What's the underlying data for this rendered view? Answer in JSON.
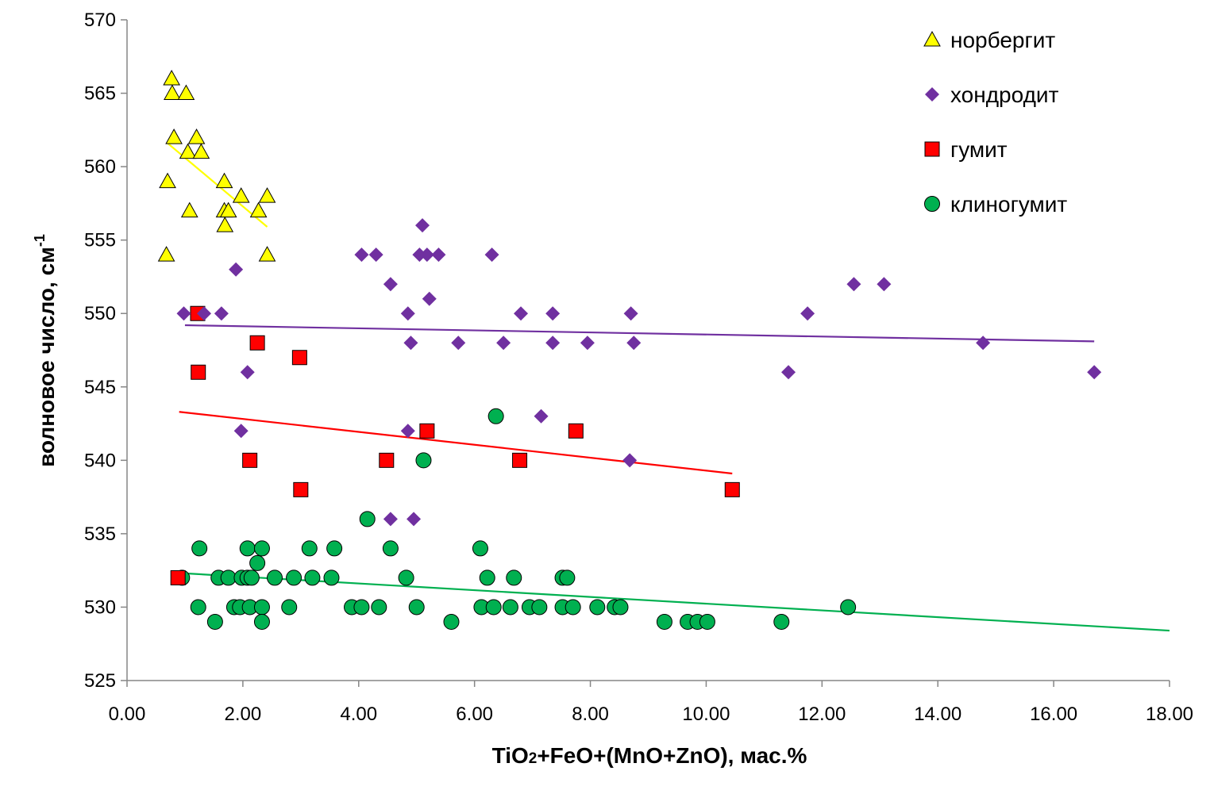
{
  "chart_data": {
    "type": "scatter",
    "xlabel": {
      "pre": "TiO",
      "sub": "2",
      "post": "+FeO+(MnO+ZnO), мас.%"
    },
    "ylabel": {
      "main": "волновое число, см",
      "sup": "-1"
    },
    "xlim": [
      0,
      18
    ],
    "ylim": [
      525,
      570
    ],
    "xticks": [
      "0.00",
      "2.00",
      "4.00",
      "6.00",
      "8.00",
      "10.00",
      "12.00",
      "14.00",
      "16.00",
      "18.00"
    ],
    "yticks": [
      "525",
      "530",
      "535",
      "540",
      "545",
      "550",
      "555",
      "560",
      "565",
      "570"
    ],
    "grid": false,
    "legend_position": "top-right",
    "series": [
      {
        "name": "норбергит",
        "marker": "triangle",
        "color": "#ffff00",
        "points": [
          [
            0.77,
            566
          ],
          [
            0.78,
            565
          ],
          [
            1.02,
            565
          ],
          [
            0.81,
            562
          ],
          [
            1.2,
            562
          ],
          [
            1.05,
            561
          ],
          [
            1.28,
            561
          ],
          [
            0.7,
            559
          ],
          [
            1.68,
            559
          ],
          [
            1.97,
            558
          ],
          [
            2.42,
            558
          ],
          [
            1.08,
            557
          ],
          [
            1.68,
            557
          ],
          [
            1.75,
            557
          ],
          [
            2.27,
            557
          ],
          [
            1.69,
            556
          ],
          [
            0.68,
            554
          ],
          [
            2.42,
            554
          ]
        ],
        "trend": {
          "x1": 0.7,
          "y1": 561.6,
          "x2": 2.42,
          "y2": 555.9,
          "color": "#ffff00"
        }
      },
      {
        "name": "хондродит",
        "marker": "diamond",
        "color": "#7030a0",
        "points": [
          [
            5.1,
            556
          ],
          [
            4.05,
            554
          ],
          [
            4.3,
            554
          ],
          [
            5.05,
            554
          ],
          [
            5.18,
            554
          ],
          [
            5.38,
            554
          ],
          [
            6.3,
            554
          ],
          [
            1.88,
            553
          ],
          [
            4.55,
            552
          ],
          [
            12.55,
            552
          ],
          [
            13.07,
            552
          ],
          [
            5.22,
            551
          ],
          [
            0.98,
            550
          ],
          [
            1.33,
            550
          ],
          [
            1.63,
            550
          ],
          [
            4.85,
            550
          ],
          [
            6.8,
            550
          ],
          [
            7.35,
            550
          ],
          [
            8.7,
            550
          ],
          [
            11.75,
            550
          ],
          [
            4.9,
            548
          ],
          [
            5.72,
            548
          ],
          [
            6.5,
            548
          ],
          [
            7.35,
            548
          ],
          [
            7.95,
            548
          ],
          [
            8.75,
            548
          ],
          [
            14.78,
            548
          ],
          [
            2.08,
            546
          ],
          [
            11.42,
            546
          ],
          [
            16.7,
            546
          ],
          [
            7.15,
            543
          ],
          [
            1.97,
            542
          ],
          [
            4.85,
            542
          ],
          [
            8.68,
            540
          ],
          [
            4.55,
            536
          ],
          [
            4.95,
            536
          ]
        ],
        "trend": {
          "x1": 1.0,
          "y1": 549.2,
          "x2": 16.7,
          "y2": 548.1,
          "color": "#7030a0"
        }
      },
      {
        "name": "гумит",
        "marker": "square",
        "color": "#ff0000",
        "points": [
          [
            1.22,
            550
          ],
          [
            2.25,
            548
          ],
          [
            2.98,
            547
          ],
          [
            1.23,
            546
          ],
          [
            5.18,
            542
          ],
          [
            7.75,
            542
          ],
          [
            2.12,
            540
          ],
          [
            4.48,
            540
          ],
          [
            6.78,
            540
          ],
          [
            3.0,
            538
          ],
          [
            10.45,
            538
          ],
          [
            0.88,
            532
          ]
        ],
        "trend": {
          "x1": 0.9,
          "y1": 543.3,
          "x2": 10.45,
          "y2": 539.1,
          "color": "#ff0000"
        }
      },
      {
        "name": "клиногумит",
        "marker": "circle",
        "color": "#00b050",
        "points": [
          [
            6.37,
            543
          ],
          [
            5.12,
            540
          ],
          [
            4.15,
            536
          ],
          [
            1.25,
            534
          ],
          [
            2.08,
            534
          ],
          [
            2.33,
            534
          ],
          [
            3.15,
            534
          ],
          [
            3.58,
            534
          ],
          [
            4.55,
            534
          ],
          [
            6.1,
            534
          ],
          [
            2.25,
            533
          ],
          [
            0.95,
            532
          ],
          [
            1.58,
            532
          ],
          [
            1.75,
            532
          ],
          [
            1.98,
            532
          ],
          [
            2.08,
            532
          ],
          [
            2.15,
            532
          ],
          [
            2.55,
            532
          ],
          [
            2.88,
            532
          ],
          [
            3.2,
            532
          ],
          [
            3.53,
            532
          ],
          [
            4.82,
            532
          ],
          [
            6.22,
            532
          ],
          [
            6.68,
            532
          ],
          [
            7.52,
            532
          ],
          [
            7.6,
            532
          ],
          [
            1.23,
            530
          ],
          [
            1.85,
            530
          ],
          [
            1.95,
            530
          ],
          [
            2.12,
            530
          ],
          [
            2.33,
            530
          ],
          [
            2.8,
            530
          ],
          [
            3.88,
            530
          ],
          [
            4.05,
            530
          ],
          [
            4.35,
            530
          ],
          [
            5.0,
            530
          ],
          [
            6.12,
            530
          ],
          [
            6.33,
            530
          ],
          [
            6.62,
            530
          ],
          [
            6.95,
            530
          ],
          [
            7.12,
            530
          ],
          [
            7.52,
            530
          ],
          [
            7.7,
            530
          ],
          [
            8.12,
            530
          ],
          [
            8.42,
            530
          ],
          [
            8.52,
            530
          ],
          [
            12.45,
            530
          ],
          [
            1.52,
            529
          ],
          [
            2.33,
            529
          ],
          [
            5.6,
            529
          ],
          [
            9.28,
            529
          ],
          [
            9.68,
            529
          ],
          [
            9.85,
            529
          ],
          [
            10.02,
            529
          ],
          [
            11.3,
            529
          ]
        ],
        "trend": {
          "x1": 1.0,
          "y1": 532.3,
          "x2": 18.0,
          "y2": 528.4,
          "color": "#00b050"
        }
      }
    ]
  }
}
